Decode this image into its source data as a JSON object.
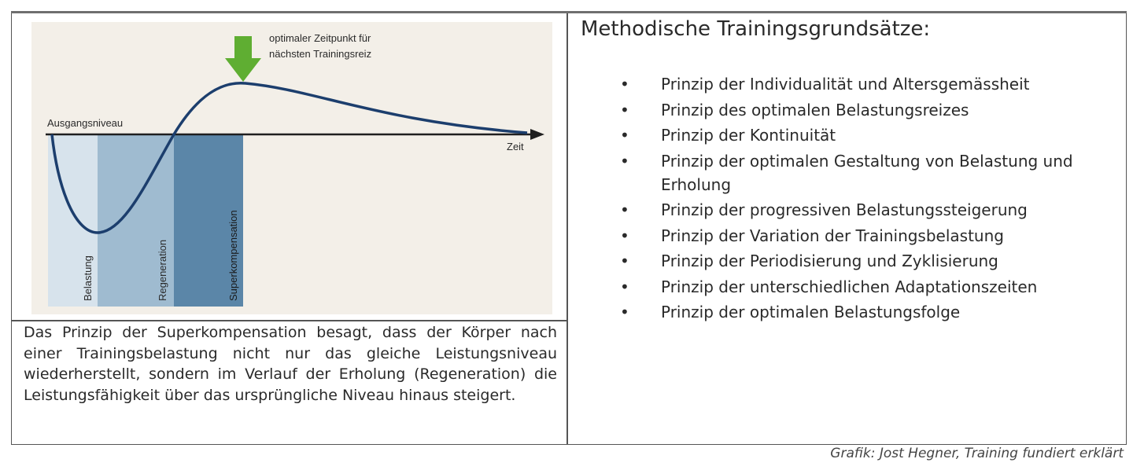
{
  "figure": {
    "annotation": [
      "optimaler Zeitpunkt für",
      "nächsten Trainingsreiz"
    ],
    "baseline_label": "Ausgangsniveau",
    "axis_label": "Zeit",
    "phases": [
      "Belastung",
      "Regeneration",
      "Superkompensation"
    ],
    "colors": {
      "background": "#f3efe8",
      "phase_belastung": "#d7e3ec",
      "phase_regeneration": "#9fbbd0",
      "phase_superkompensation": "#5b86a8",
      "curve": "#1c3e6d",
      "arrow": "#5fae32"
    }
  },
  "caption": "Das Prinzip der Superkompensation besagt, dass der Körper nach einer Trainingsbelastung nicht nur das gleiche Leistungsniveau wiederherstellt, sondern im Verlauf der Erholung (Regeneration) die Leistungsfähigkeit über das ursprüngliche Niveau hinaus steigert.",
  "principles_title": "Methodische Trainingsgrundsätze:",
  "principles": [
    "Prinzip der Individualität und Altersgemässheit",
    "Prinzip des optimalen Belastungsreizes",
    "Prinzip der Kontinuität",
    "Prinzip der optimalen Gestaltung von Belastung und Erholung",
    "Prinzip der progressiven Belastungssteigerung",
    "Prinzip der Variation der Trainingsbelastung",
    "Prinzip der Periodisierung und Zyklisierung",
    "Prinzip der unterschiedlichen Adaptationszeiten",
    "Prinzip der optimalen Belastungsfolge"
  ],
  "source": "Grafik: Jost Hegner, Training fundiert erklärt"
}
